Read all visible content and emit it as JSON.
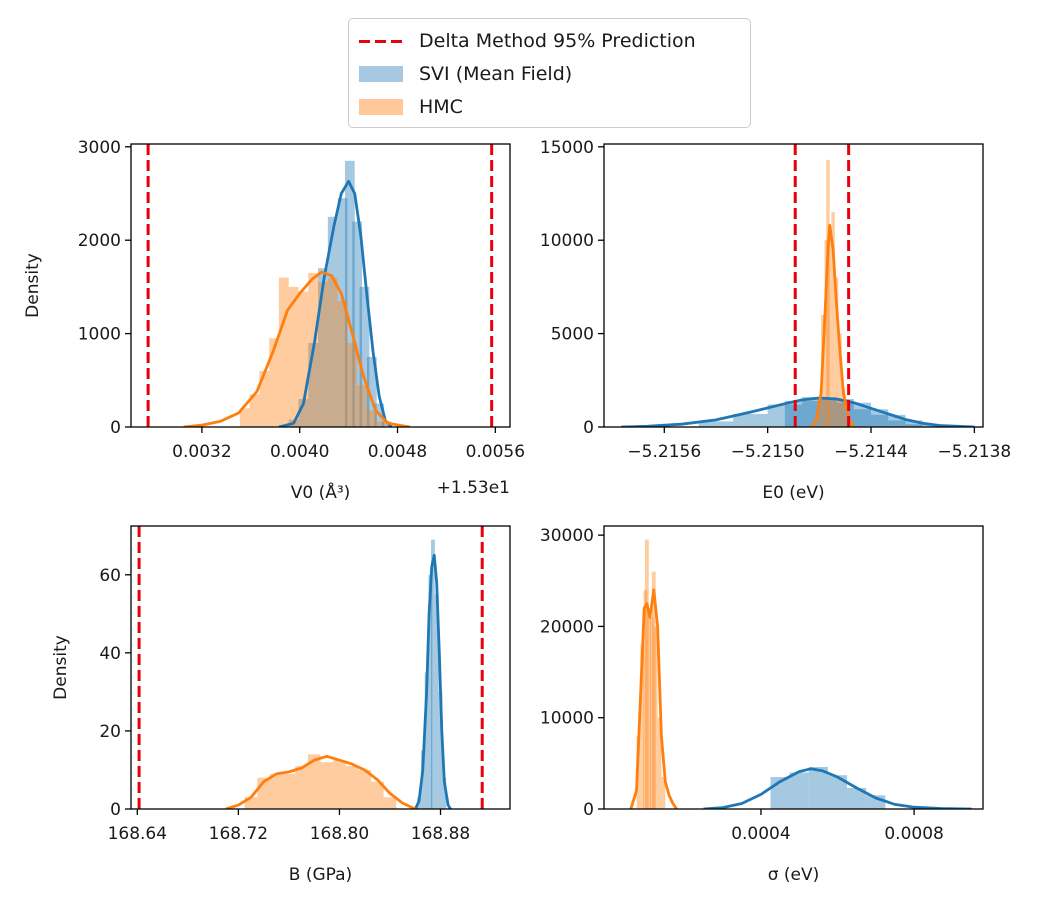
{
  "legend": {
    "entries": [
      {
        "label": "Delta Method 95% Prediction",
        "kind": "line",
        "color": "#e8000b"
      },
      {
        "label": "SVI (Mean Field)",
        "kind": "patch",
        "color": "#a6c8e2"
      },
      {
        "label": "HMC",
        "kind": "patch",
        "color": "#ffc89b"
      }
    ]
  },
  "colors": {
    "svi_line": "#1f77b4",
    "hmc_line": "#ff7f0e",
    "svi_fill": "#1f77b4",
    "hmc_fill": "#ff7f0e",
    "delta": "#e8000b"
  },
  "chart_data": [
    {
      "type": "histogram",
      "xlabel": "V0 (Å³)",
      "ylabel": "Density",
      "offset_label": "+1.53e1",
      "xlim": [
        0.00262,
        0.00572
      ],
      "ylim": [
        0,
        3030
      ],
      "xticks": [
        0.0032,
        0.004,
        0.0048,
        0.0056
      ],
      "xtick_labels": [
        "0.0032",
        "0.0040",
        "0.0048",
        "0.0056"
      ],
      "yticks": [
        0,
        1000,
        2000,
        3000
      ],
      "ytick_labels": [
        "0",
        "1000",
        "2000",
        "3000"
      ],
      "delta_lines": [
        0.00276,
        0.00557
      ],
      "series": [
        {
          "name": "SVI (Mean Field)",
          "kde": [
            [
              0.00383,
              0
            ],
            [
              0.00395,
              40
            ],
            [
              0.00403,
              250
            ],
            [
              0.00412,
              900
            ],
            [
              0.0042,
              1600
            ],
            [
              0.00428,
              2150
            ],
            [
              0.00434,
              2500
            ],
            [
              0.0044,
              2630
            ],
            [
              0.00445,
              2500
            ],
            [
              0.0045,
              2050
            ],
            [
              0.00455,
              1400
            ],
            [
              0.0046,
              800
            ],
            [
              0.00465,
              330
            ],
            [
              0.0047,
              70
            ],
            [
              0.00475,
              0
            ]
          ],
          "bins": [
            [
              0.00395,
              80
            ],
            [
              0.00403,
              300
            ],
            [
              0.00411,
              900
            ],
            [
              0.00419,
              1700
            ],
            [
              0.00427,
              2250
            ],
            [
              0.00435,
              2450
            ],
            [
              0.00441,
              2850
            ],
            [
              0.00447,
              2200
            ],
            [
              0.00453,
              1500
            ],
            [
              0.00459,
              750
            ],
            [
              0.00465,
              250
            ],
            [
              0.00471,
              60
            ]
          ]
        },
        {
          "name": "HMC",
          "kde": [
            [
              0.00305,
              0
            ],
            [
              0.0032,
              20
            ],
            [
              0.00335,
              60
            ],
            [
              0.0035,
              150
            ],
            [
              0.00365,
              380
            ],
            [
              0.00378,
              800
            ],
            [
              0.0039,
              1250
            ],
            [
              0.004,
              1430
            ],
            [
              0.0041,
              1580
            ],
            [
              0.00418,
              1660
            ],
            [
              0.00426,
              1620
            ],
            [
              0.00434,
              1430
            ],
            [
              0.00442,
              1050
            ],
            [
              0.00452,
              550
            ],
            [
              0.00462,
              180
            ],
            [
              0.00472,
              40
            ],
            [
              0.0049,
              0
            ]
          ],
          "bins": [
            [
              0.00355,
              200
            ],
            [
              0.00363,
              350
            ],
            [
              0.00371,
              600
            ],
            [
              0.00379,
              950
            ],
            [
              0.00387,
              1600
            ],
            [
              0.00395,
              1500
            ],
            [
              0.00403,
              1450
            ],
            [
              0.00411,
              1650
            ],
            [
              0.00419,
              1550
            ],
            [
              0.00427,
              1600
            ],
            [
              0.00435,
              1350
            ],
            [
              0.00443,
              900
            ],
            [
              0.00451,
              450
            ],
            [
              0.00459,
              180
            ],
            [
              0.00467,
              60
            ]
          ]
        }
      ]
    },
    {
      "type": "histogram",
      "xlabel": "E0 (eV)",
      "ylabel": "",
      "xlim": [
        -5.21595,
        -5.21375
      ],
      "ylim": [
        0,
        15150
      ],
      "xticks": [
        -5.2156,
        -5.215,
        -5.2144,
        -5.2138
      ],
      "xtick_labels": [
        "−5.2156",
        "−5.2150",
        "−5.2144",
        "−5.2138"
      ],
      "yticks": [
        0,
        5000,
        10000,
        15000
      ],
      "ytick_labels": [
        "0",
        "5000",
        "10000",
        "15000"
      ],
      "delta_lines": [
        -5.21484,
        -5.21453
      ],
      "series": [
        {
          "name": "SVI (Mean Field)",
          "kde": [
            [
              -5.21585,
              0
            ],
            [
              -5.2157,
              40
            ],
            [
              -5.2155,
              150
            ],
            [
              -5.2153,
              380
            ],
            [
              -5.2151,
              800
            ],
            [
              -5.2149,
              1250
            ],
            [
              -5.2148,
              1450
            ],
            [
              -5.2147,
              1550
            ],
            [
              -5.2146,
              1500
            ],
            [
              -5.2145,
              1300
            ],
            [
              -5.2144,
              1000
            ],
            [
              -5.2143,
              700
            ],
            [
              -5.2142,
              400
            ],
            [
              -5.2141,
              200
            ],
            [
              -5.214,
              80
            ],
            [
              -5.2138,
              0
            ]
          ],
          "bins": [
            [
              -5.2153,
              300
            ],
            [
              -5.2151,
              700
            ],
            [
              -5.2149,
              1200
            ],
            [
              -5.2148,
              1400
            ],
            [
              -5.2147,
              1600
            ],
            [
              -5.2146,
              1500
            ],
            [
              -5.2145,
              1300
            ],
            [
              -5.2144,
              950
            ],
            [
              -5.2143,
              650
            ],
            [
              -5.2142,
              350
            ],
            [
              -5.2141,
              150
            ]
          ]
        },
        {
          "name": "HMC",
          "kde": [
            [
              -5.21475,
              0
            ],
            [
              -5.21472,
              300
            ],
            [
              -5.21469,
              1800
            ],
            [
              -5.21467,
              5500
            ],
            [
              -5.21465,
              9500
            ],
            [
              -5.21464,
              10800
            ],
            [
              -5.21462,
              9500
            ],
            [
              -5.2146,
              6500
            ],
            [
              -5.21458,
              4000
            ],
            [
              -5.21456,
              1800
            ],
            [
              -5.21453,
              500
            ],
            [
              -5.2145,
              0
            ]
          ],
          "bins": [
            [
              -5.2147,
              1500
            ],
            [
              -5.21468,
              6000
            ],
            [
              -5.21466,
              10000
            ],
            [
              -5.21465,
              14300
            ],
            [
              -5.21464,
              10500
            ],
            [
              -5.21462,
              11500
            ],
            [
              -5.2146,
              8000
            ],
            [
              -5.21458,
              5000
            ],
            [
              -5.21456,
              2000
            ],
            [
              -5.21454,
              600
            ]
          ]
        }
      ]
    },
    {
      "type": "histogram",
      "xlabel": "B (GPa)",
      "ylabel": "Density",
      "xlim": [
        168.635,
        168.935
      ],
      "ylim": [
        0,
        72.5
      ],
      "xticks": [
        168.64,
        168.72,
        168.8,
        168.88
      ],
      "xtick_labels": [
        "168.64",
        "168.72",
        "168.80",
        "168.88"
      ],
      "yticks": [
        0,
        20,
        40,
        60
      ],
      "ytick_labels": [
        "0",
        "20",
        "40",
        "60"
      ],
      "delta_lines": [
        168.6414,
        168.913
      ],
      "series": [
        {
          "name": "SVI (Mean Field)",
          "kde": [
            [
              168.86,
              0
            ],
            [
              168.863,
              2
            ],
            [
              168.866,
              10
            ],
            [
              168.869,
              30
            ],
            [
              168.871,
              50
            ],
            [
              168.873,
              62
            ],
            [
              168.875,
              65
            ],
            [
              168.877,
              58
            ],
            [
              168.879,
              40
            ],
            [
              168.881,
              20
            ],
            [
              168.883,
              7
            ],
            [
              168.886,
              1
            ],
            [
              168.888,
              0
            ]
          ],
          "bins": [
            [
              168.863,
              3
            ],
            [
              168.866,
              15
            ],
            [
              168.869,
              35
            ],
            [
              168.872,
              60
            ],
            [
              168.874,
              69
            ],
            [
              168.877,
              55
            ],
            [
              168.88,
              30
            ],
            [
              168.883,
              8
            ]
          ]
        },
        {
          "name": "HMC",
          "kde": [
            [
              168.71,
              0
            ],
            [
              168.72,
              1
            ],
            [
              168.73,
              3
            ],
            [
              168.74,
              7
            ],
            [
              168.75,
              9
            ],
            [
              168.76,
              9.5
            ],
            [
              168.77,
              10.5
            ],
            [
              168.78,
              12.5
            ],
            [
              168.79,
              13.5
            ],
            [
              168.8,
              12.5
            ],
            [
              168.81,
              11.5
            ],
            [
              168.82,
              10
            ],
            [
              168.83,
              7.5
            ],
            [
              168.84,
              4
            ],
            [
              168.85,
              1.5
            ],
            [
              168.86,
              0
            ]
          ],
          "bins": [
            [
              168.73,
              3
            ],
            [
              168.74,
              8
            ],
            [
              168.75,
              9
            ],
            [
              168.76,
              9
            ],
            [
              168.77,
              11
            ],
            [
              168.78,
              14
            ],
            [
              168.79,
              12
            ],
            [
              168.8,
              12.5
            ],
            [
              168.81,
              11
            ],
            [
              168.82,
              10
            ],
            [
              168.83,
              7
            ],
            [
              168.84,
              3
            ]
          ]
        }
      ]
    },
    {
      "type": "histogram",
      "xlabel": "σ (eV)",
      "ylabel": "",
      "xlim": [
        -1e-05,
        0.00098
      ],
      "ylim": [
        0,
        31000
      ],
      "xticks": [
        0.0004,
        0.0008
      ],
      "xtick_labels": [
        "0.0004",
        "0.0008"
      ],
      "yticks": [
        0,
        10000,
        20000,
        30000
      ],
      "ytick_labels": [
        "0",
        "10000",
        "20000",
        "30000"
      ],
      "delta_lines": [],
      "series": [
        {
          "name": "SVI (Mean Field)",
          "kde": [
            [
              0.00025,
              0
            ],
            [
              0.0003,
              150
            ],
            [
              0.00035,
              600
            ],
            [
              0.0004,
              1600
            ],
            [
              0.00045,
              3000
            ],
            [
              0.0005,
              4100
            ],
            [
              0.00053,
              4400
            ],
            [
              0.00056,
              4200
            ],
            [
              0.0006,
              3500
            ],
            [
              0.00065,
              2300
            ],
            [
              0.0007,
              1200
            ],
            [
              0.00075,
              500
            ],
            [
              0.0008,
              200
            ],
            [
              0.00087,
              60
            ],
            [
              0.00095,
              0
            ]
          ],
          "bins": [
            [
              0.00045,
              3500
            ],
            [
              0.0005,
              4000
            ],
            [
              0.00055,
              4600
            ],
            [
              0.0006,
              3700
            ],
            [
              0.00065,
              2300
            ],
            [
              0.0007,
              1500
            ]
          ]
        },
        {
          "name": "HMC",
          "kde": [
            [
              6e-05,
              0
            ],
            [
              7.5e-05,
              2000
            ],
            [
              8.5e-05,
              12000
            ],
            [
              9.5e-05,
              22000
            ],
            [
              0.000102,
              22500
            ],
            [
              0.00011,
              21000
            ],
            [
              0.00012,
              24000
            ],
            [
              0.00013,
              20000
            ],
            [
              0.00014,
              8000
            ],
            [
              0.00015,
              3000
            ],
            [
              0.00016,
              1500
            ],
            [
              0.00017,
              600
            ],
            [
              0.00018,
              0
            ]
          ],
          "bins": [
            [
              8e-05,
              8000
            ],
            [
              9e-05,
              18000
            ],
            [
              9.8e-05,
              24000
            ],
            [
              0.000102,
              29500
            ],
            [
              0.000108,
              22000
            ],
            [
              0.000115,
              21000
            ],
            [
              0.00012,
              26000
            ],
            [
              0.000125,
              20000
            ],
            [
              0.000135,
              10000
            ],
            [
              0.000145,
              3500
            ]
          ]
        }
      ]
    }
  ]
}
